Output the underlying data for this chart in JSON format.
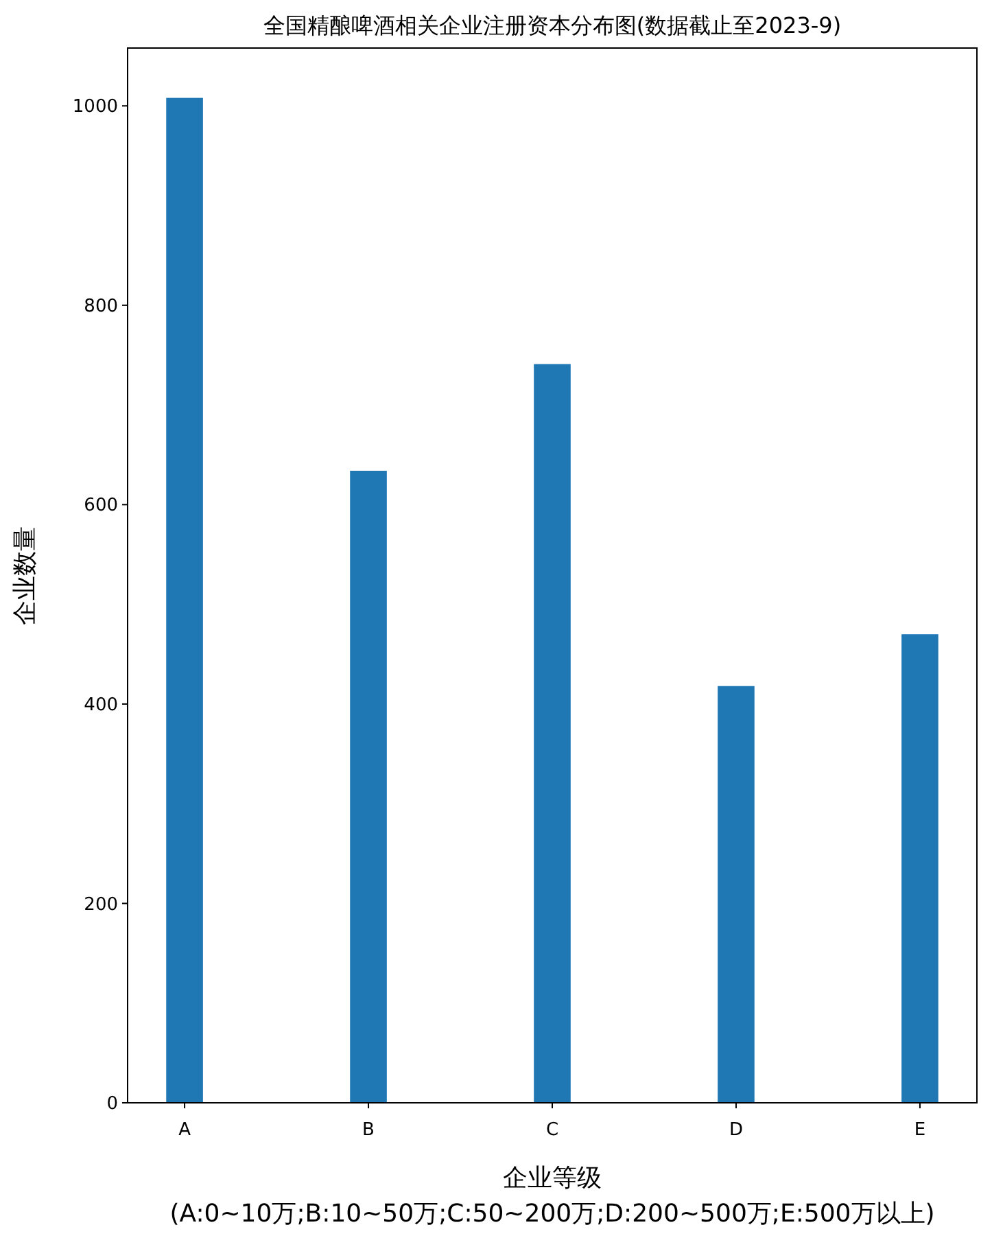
{
  "chart_data": {
    "type": "bar",
    "title": "全国精酿啤酒相关企业注册资本分布图(数据截止至2023-9)",
    "xlabel": "企业等级\n(A:0~10万;B:10~50万;C:50~200万;D:200~500万;E:500万以上)",
    "ylabel": "企业数量",
    "categories": [
      "A",
      "B",
      "C",
      "D",
      "E"
    ],
    "values": [
      1008,
      634,
      741,
      418,
      470
    ],
    "color": "#1f77b4",
    "ylim": [
      0,
      1058
    ],
    "yticks": [
      0,
      200,
      400,
      600,
      800,
      1000
    ]
  }
}
